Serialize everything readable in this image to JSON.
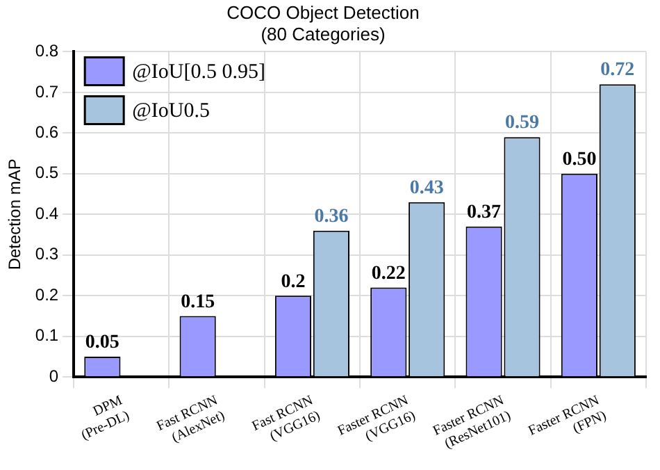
{
  "chart_data": {
    "type": "bar",
    "title": "COCO Object Detection",
    "subtitle": "(80 Categories)",
    "ylabel": "Detection mAP",
    "categories": [
      "DPM (Pre-DL)",
      "Fast RCNN (AlexNet)",
      "Fast RCNN (VGG16)",
      "Faster RCNN (VGG16)",
      "Faster RCNN (ResNet101)",
      "Faster RCNN (FPN)"
    ],
    "series": [
      {
        "name": "@IoU[0.5 0.95]",
        "color": "#9999ff",
        "values": [
          0.05,
          0.15,
          0.2,
          0.22,
          0.37,
          0.5
        ],
        "value_labels": [
          "0.05",
          "0.15",
          "0.2",
          "0.22",
          "0.37",
          "0.50"
        ]
      },
      {
        "name": "@IoU0.5",
        "color": "#a6c4dd",
        "values": [
          null,
          null,
          0.36,
          0.43,
          0.59,
          0.72
        ],
        "value_labels": [
          null,
          null,
          "0.36",
          "0.43",
          "0.59",
          "0.72"
        ]
      }
    ],
    "ylim": [
      0,
      0.8
    ],
    "yticks": [
      0,
      0.1,
      0.2,
      0.3,
      0.4,
      0.5,
      0.6,
      0.7,
      0.8
    ],
    "grid": true,
    "legend": "top left"
  }
}
